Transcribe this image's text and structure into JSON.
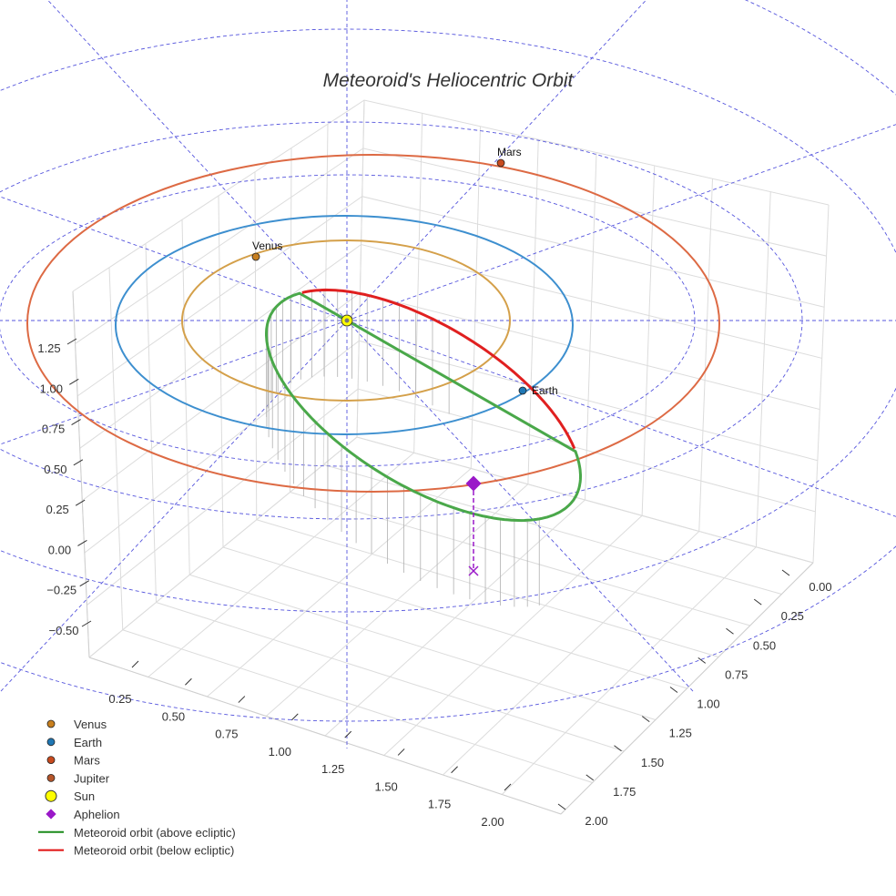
{
  "chart_data": {
    "type": "3d-line",
    "title": "Meteoroid's Heliocentric Orbit",
    "axes": {
      "x": {
        "ticks": [
          "0.25",
          "0.50",
          "0.75",
          "1.00",
          "1.25",
          "1.50",
          "1.75",
          "2.00"
        ]
      },
      "y": {
        "ticks": [
          "0.00",
          "0.25",
          "0.50",
          "0.75",
          "1.00",
          "1.25",
          "1.50",
          "1.75",
          "2.00"
        ]
      },
      "z": {
        "ticks": [
          "−0.50",
          "−0.25",
          "0.00",
          "0.25",
          "0.50",
          "0.75",
          "1.00",
          "1.25"
        ]
      }
    },
    "planets": [
      {
        "name": "Venus",
        "orbit_radius_au": 0.72,
        "color": "#d4a04a",
        "marker_color": "#c87f1e",
        "label": "Venus"
      },
      {
        "name": "Earth",
        "orbit_radius_au": 1.0,
        "color": "#3d8fcf",
        "marker_color": "#1f77b4",
        "label": "Earth"
      },
      {
        "name": "Mars",
        "orbit_radius_au": 1.52,
        "color": "#dd6a44",
        "marker_color": "#c84a1e",
        "label": "Mars"
      }
    ],
    "legend": [
      {
        "label": "Venus",
        "marker": "circle",
        "color": "#c87f1e"
      },
      {
        "label": "Earth",
        "marker": "circle",
        "color": "#1f77b4"
      },
      {
        "label": "Mars",
        "marker": "circle",
        "color": "#c84a1e"
      },
      {
        "label": "Jupiter",
        "marker": "circle",
        "color": "#b5552a"
      },
      {
        "label": "Sun",
        "marker": "sun",
        "color": "#ffff00"
      },
      {
        "label": "Aphelion",
        "marker": "diamond",
        "color": "#9a18c8"
      },
      {
        "label": "Meteoroid orbit (above ecliptic)",
        "marker": "line",
        "color": "#1a8a1a"
      },
      {
        "label": "Meteoroid orbit (below ecliptic)",
        "marker": "line",
        "color": "#e01010"
      }
    ],
    "meteoroid": {
      "above_color": "#4aa84a",
      "below_color": "#e02020",
      "aphelion_color": "#9a18c8"
    },
    "reference_grid_color": "#5555dd"
  }
}
